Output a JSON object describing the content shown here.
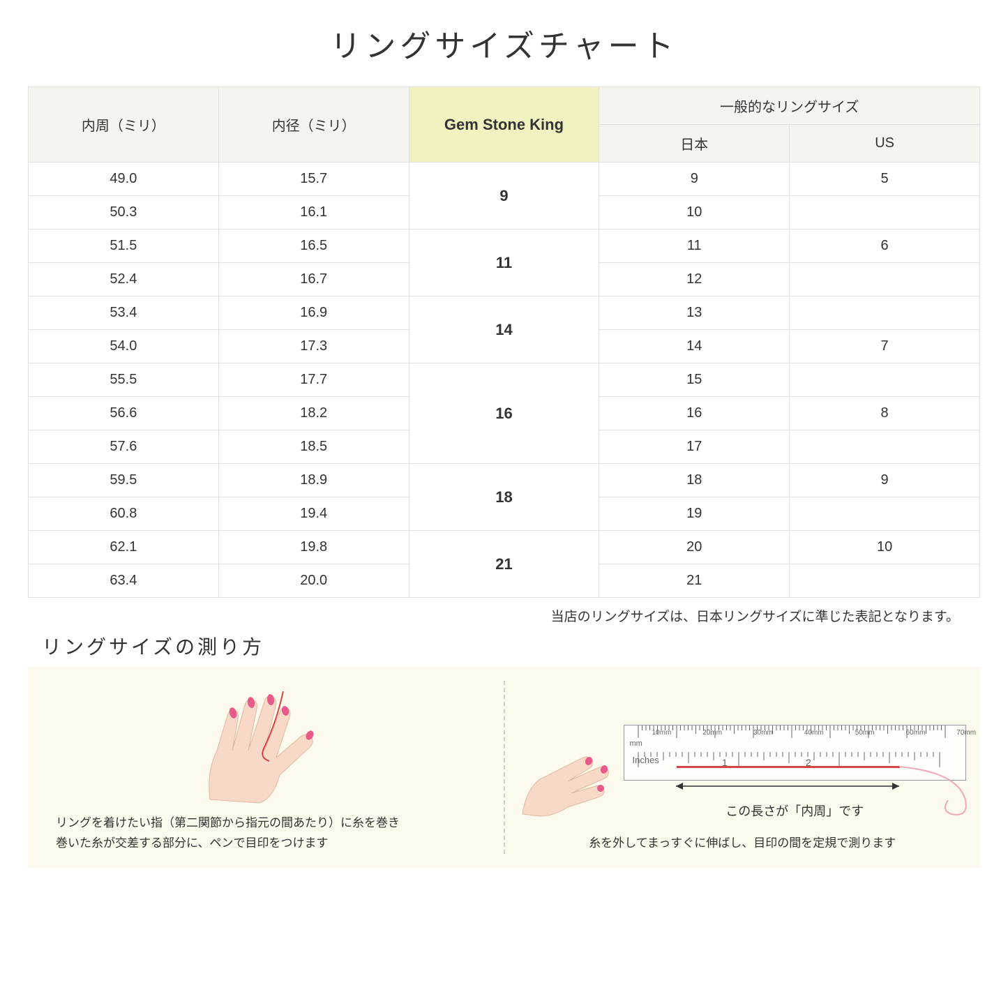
{
  "title": "リングサイズチャート",
  "headers": {
    "circumference": "内周（ミリ）",
    "diameter": "内径（ミリ）",
    "gsk": "Gem Stone King",
    "general": "一般的なリングサイズ",
    "japan": "日本",
    "us": "US"
  },
  "groups": [
    {
      "gsk": "9",
      "rows": [
        {
          "c": "49.0",
          "d": "15.7",
          "jp": "9",
          "us": "5"
        },
        {
          "c": "50.3",
          "d": "16.1",
          "jp": "10",
          "us": ""
        }
      ]
    },
    {
      "gsk": "11",
      "rows": [
        {
          "c": "51.5",
          "d": "16.5",
          "jp": "11",
          "us": "6"
        },
        {
          "c": "52.4",
          "d": "16.7",
          "jp": "12",
          "us": ""
        }
      ]
    },
    {
      "gsk": "14",
      "rows": [
        {
          "c": "53.4",
          "d": "16.9",
          "jp": "13",
          "us": ""
        },
        {
          "c": "54.0",
          "d": "17.3",
          "jp": "14",
          "us": "7"
        }
      ]
    },
    {
      "gsk": "16",
      "rows": [
        {
          "c": "55.5",
          "d": "17.7",
          "jp": "15",
          "us": ""
        },
        {
          "c": "56.6",
          "d": "18.2",
          "jp": "16",
          "us": "8"
        },
        {
          "c": "57.6",
          "d": "18.5",
          "jp": "17",
          "us": ""
        }
      ]
    },
    {
      "gsk": "18",
      "rows": [
        {
          "c": "59.5",
          "d": "18.9",
          "jp": "18",
          "us": "9"
        },
        {
          "c": "60.8",
          "d": "19.4",
          "jp": "19",
          "us": ""
        }
      ]
    },
    {
      "gsk": "21",
      "rows": [
        {
          "c": "62.1",
          "d": "19.8",
          "jp": "20",
          "us": "10"
        },
        {
          "c": "63.4",
          "d": "20.0",
          "jp": "21",
          "us": ""
        }
      ]
    }
  ],
  "note": "当店のリングサイズは、日本リングサイズに準じた表記となります。",
  "subtitle": "リングサイズの測り方",
  "instruction1_line1": "リングを着けたい指（第二関節から指元の間あたり）に糸を巻き",
  "instruction1_line2": "巻いた糸が交差する部分に、ペンで目印をつけます",
  "measure_label": "この長さが「内周」です",
  "instruction2": "糸を外してまっすぐに伸ばし、目印の間を定規で測ります",
  "ruler": {
    "mm_label": "mm",
    "inches_label": "Inches",
    "mm_marks": [
      "10mm",
      "20mm",
      "30mm",
      "40mm",
      "50mm",
      "60mm",
      "70mm"
    ]
  },
  "colors": {
    "header_bg": "#f5f5ef",
    "gsk_bg": "#f2f2c0",
    "border": "#e0e0e0",
    "inst_bg": "#fbfaec",
    "thread": "#d64545",
    "skin": "#f8d9c8",
    "nail": "#e85a8a"
  }
}
